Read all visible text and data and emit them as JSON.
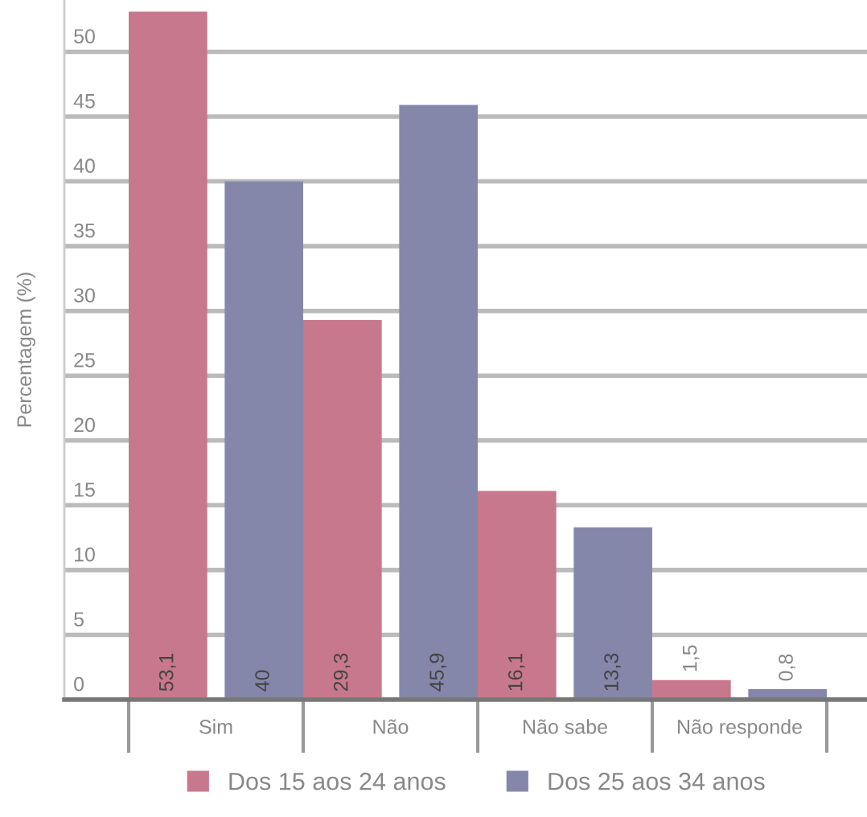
{
  "chart_data": {
    "type": "bar",
    "ylabel": "Percentagem (%)",
    "categories": [
      "Sim",
      "Não",
      "Não sabe",
      "Não responde"
    ],
    "series": [
      {
        "name": "Dos 15 aos 24 anos",
        "color": "#c8788c",
        "values": [
          53.1,
          29.3,
          16.1,
          1.5
        ]
      },
      {
        "name": "Dos 25 aos 34 anos",
        "color": "#8587aa",
        "values": [
          40,
          45.9,
          13.3,
          0.8
        ]
      }
    ],
    "value_labels": [
      [
        "53,1",
        "29,3",
        "16,1",
        "1,5"
      ],
      [
        "40",
        "45,9",
        "13,3",
        "0,8"
      ]
    ],
    "ylim": [
      0,
      54
    ],
    "yticks": [
      0,
      5,
      10,
      15,
      20,
      25,
      30,
      35,
      40,
      45,
      50
    ],
    "grid": "y",
    "legend": "bottom"
  }
}
